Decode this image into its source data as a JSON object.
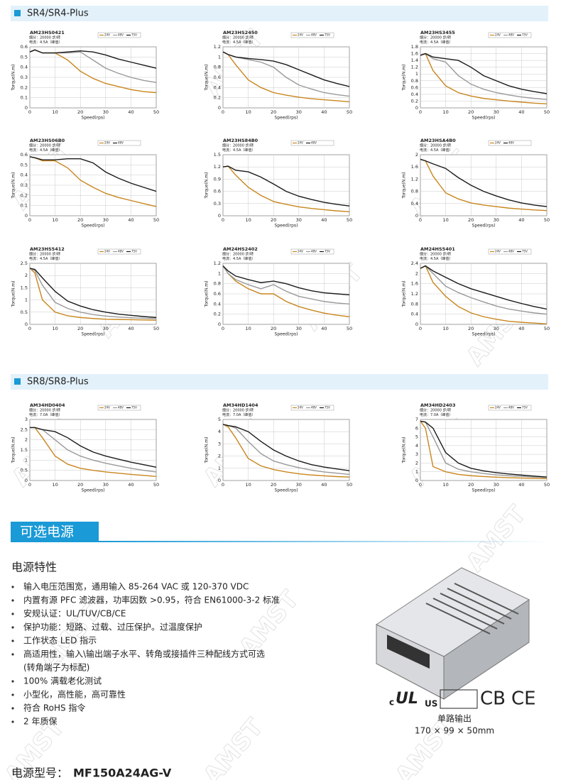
{
  "watermark": "AMST",
  "sections": [
    "SR4/SR4-Plus",
    "SR8/SR8-Plus"
  ],
  "power": {
    "banner": "可选电源",
    "heading": "电源特性",
    "bullets": [
      [
        "输入电压范围宽，通用输入 85-264 VAC 或 120-370 VDC"
      ],
      [
        "内置有源 PFC 滤波器，功率因数 >0.95，符合 EN61000-3-2 标准"
      ],
      [
        "安规认证：UL/TUV/CB/CE"
      ],
      [
        "保护功能：短路、过载、过压保护。过温度保护"
      ],
      [
        "工作状态 LED 指示"
      ],
      [
        "高适用性，输入\\输出端子水平、转角或接插件三种配线方式可选",
        "(转角端子为标配)"
      ],
      [
        "100% 满载老化测试"
      ],
      [
        "小型化，高性能，高可靠性"
      ],
      [
        "符合 RoHS 指令"
      ],
      [
        "2 年质保"
      ]
    ],
    "certs": {
      "c": "c",
      "ul": "UL",
      "us": "US",
      "cb": "CB",
      "ce": "CE"
    },
    "caption": "单路输出",
    "dims": "170 × 99 × 50mm",
    "model_label": "电源型号：",
    "model": "MF150A24AG-V"
  },
  "chart_data": [
    {
      "type": "line",
      "title": "AM23HS0421",
      "subtitle": [
        "细分：20000 步/转",
        "电流：4.5A（峰值）"
      ],
      "xlabel": "Speed(rps)",
      "ylabel": "Torque(N.m)",
      "x": [
        0,
        2,
        5,
        10,
        15,
        20,
        25,
        30,
        35,
        40,
        45,
        50
      ],
      "xlim": [
        0,
        50
      ],
      "xticks": [
        0,
        10,
        20,
        30,
        40,
        50
      ],
      "ylim": [
        0,
        0.6
      ],
      "yticks": [
        0,
        0.1,
        0.2,
        0.3,
        0.4,
        0.5,
        0.6
      ],
      "grid": true,
      "series": [
        {
          "name": "24V",
          "color": "#c8861e",
          "values": [
            0.55,
            0.57,
            0.54,
            0.54,
            0.47,
            0.36,
            0.29,
            0.24,
            0.21,
            0.18,
            0.16,
            0.15
          ]
        },
        {
          "name": "48V",
          "color": "#999999",
          "values": [
            0.55,
            0.57,
            0.54,
            0.54,
            0.54,
            0.55,
            0.47,
            0.39,
            0.34,
            0.3,
            0.27,
            0.25
          ]
        },
        {
          "name": "75V",
          "color": "#1a1a1a",
          "values": [
            0.55,
            0.57,
            0.54,
            0.54,
            0.55,
            0.56,
            0.55,
            0.52,
            0.48,
            0.45,
            0.42,
            0.39
          ]
        }
      ]
    },
    {
      "type": "line",
      "title": "AM23HS2450",
      "subtitle": [
        "细分：20000 步/转",
        "电流：4.5A（峰值）"
      ],
      "xlabel": "Speed(rps)",
      "ylabel": "Torque(N.m)",
      "x": [
        0,
        2,
        5,
        10,
        15,
        20,
        25,
        30,
        35,
        40,
        45,
        50
      ],
      "xlim": [
        0,
        50
      ],
      "xticks": [
        0,
        10,
        20,
        30,
        40,
        50
      ],
      "ylim": [
        0,
        1.2
      ],
      "yticks": [
        0,
        0.2,
        0.4,
        0.6,
        0.8,
        1,
        1.2
      ],
      "grid": true,
      "series": [
        {
          "name": "24V",
          "color": "#c8861e",
          "values": [
            1.1,
            1.05,
            0.85,
            0.55,
            0.4,
            0.3,
            0.25,
            0.21,
            0.18,
            0.16,
            0.14,
            0.12
          ]
        },
        {
          "name": "48V",
          "color": "#999999",
          "values": [
            1.1,
            1.05,
            1,
            0.95,
            0.9,
            0.8,
            0.6,
            0.45,
            0.37,
            0.3,
            0.26,
            0.23
          ]
        },
        {
          "name": "75V",
          "color": "#1a1a1a",
          "values": [
            1.1,
            1.05,
            1,
            0.97,
            0.95,
            0.92,
            0.85,
            0.75,
            0.65,
            0.55,
            0.48,
            0.42
          ]
        }
      ]
    },
    {
      "type": "line",
      "title": "AM23HS3455",
      "subtitle": [
        "细分：20000 步/转",
        "电流：4.5A（峰值）"
      ],
      "xlabel": "Speed(rps)",
      "ylabel": "Torque(N.m)",
      "x": [
        0,
        2,
        5,
        10,
        15,
        20,
        25,
        30,
        35,
        40,
        45,
        50
      ],
      "xlim": [
        0,
        50
      ],
      "xticks": [
        0,
        10,
        20,
        30,
        40,
        50
      ],
      "ylim": [
        0,
        1.8
      ],
      "yticks": [
        0,
        0.2,
        0.4,
        0.6,
        0.8,
        1,
        1.2,
        1.4,
        1.6,
        1.8
      ],
      "grid": true,
      "series": [
        {
          "name": "24V",
          "color": "#c8861e",
          "values": [
            1.55,
            1.6,
            1.1,
            0.65,
            0.45,
            0.35,
            0.28,
            0.24,
            0.2,
            0.17,
            0.14,
            0.12
          ]
        },
        {
          "name": "48V",
          "color": "#999999",
          "values": [
            1.55,
            1.6,
            1.45,
            1.35,
            0.95,
            0.7,
            0.55,
            0.45,
            0.38,
            0.32,
            0.28,
            0.25
          ]
        },
        {
          "name": "75V",
          "color": "#1a1a1a",
          "values": [
            1.55,
            1.6,
            1.5,
            1.45,
            1.4,
            1.2,
            0.95,
            0.8,
            0.65,
            0.55,
            0.48,
            0.42
          ]
        }
      ]
    },
    {
      "type": "line",
      "title": "AM23HS06B0",
      "subtitle": [
        "细分：20000 步/转",
        "电流：4.5A（峰值）"
      ],
      "xlabel": "Speed(rps)",
      "ylabel": "Torque(N.m)",
      "x": [
        0,
        2,
        5,
        10,
        15,
        20,
        25,
        30,
        35,
        40,
        45,
        50
      ],
      "xlim": [
        0,
        50
      ],
      "xticks": [
        0,
        10,
        20,
        30,
        40,
        50
      ],
      "ylim": [
        0,
        0.6
      ],
      "yticks": [
        0,
        0.1,
        0.2,
        0.3,
        0.4,
        0.5,
        0.6
      ],
      "grid": true,
      "series": [
        {
          "name": "24V",
          "color": "#c8861e",
          "values": [
            0.58,
            0.57,
            0.54,
            0.54,
            0.47,
            0.35,
            0.28,
            0.22,
            0.18,
            0.15,
            0.12,
            0.09
          ]
        },
        {
          "name": "48V",
          "color": "#1a1a1a",
          "values": [
            0.58,
            0.57,
            0.55,
            0.55,
            0.56,
            0.56,
            0.52,
            0.43,
            0.37,
            0.32,
            0.28,
            0.24
          ]
        }
      ]
    },
    {
      "type": "line",
      "title": "AM23HS84B0",
      "subtitle": [
        "细分：20000 步/转",
        "电流：4.5A（峰值）"
      ],
      "xlabel": "Speed(rps)",
      "ylabel": "Torque(N.m)",
      "x": [
        0,
        2,
        5,
        10,
        15,
        20,
        25,
        30,
        35,
        40,
        45,
        50
      ],
      "xlim": [
        0,
        50
      ],
      "xticks": [
        0,
        10,
        20,
        30,
        40,
        50
      ],
      "ylim": [
        0,
        1.5
      ],
      "yticks": [
        0,
        0.3,
        0.6,
        0.9,
        1.2,
        1.5
      ],
      "grid": true,
      "series": [
        {
          "name": "24V",
          "color": "#c8861e",
          "values": [
            1.2,
            1.22,
            1,
            0.7,
            0.5,
            0.35,
            0.28,
            0.22,
            0.18,
            0.15,
            0.12,
            0.1
          ]
        },
        {
          "name": "48V",
          "color": "#1a1a1a",
          "values": [
            1.2,
            1.22,
            1.12,
            1.08,
            0.95,
            0.78,
            0.6,
            0.48,
            0.4,
            0.33,
            0.28,
            0.24
          ]
        }
      ]
    },
    {
      "type": "line",
      "title": "AM23HSA4B0",
      "subtitle": [
        "细分：20000 步/转",
        "电流：4.5A（峰值）"
      ],
      "xlabel": "Speed(rps)",
      "ylabel": "Torque(N.m)",
      "x": [
        0,
        2,
        5,
        10,
        15,
        20,
        25,
        30,
        35,
        40,
        45,
        50
      ],
      "xlim": [
        0,
        50
      ],
      "xticks": [
        0,
        10,
        20,
        30,
        40,
        50
      ],
      "ylim": [
        0,
        2
      ],
      "yticks": [
        0,
        0.4,
        0.8,
        1.2,
        1.6,
        2
      ],
      "grid": true,
      "series": [
        {
          "name": "24V",
          "color": "#c8861e",
          "values": [
            1.85,
            1.8,
            1.3,
            0.75,
            0.55,
            0.42,
            0.35,
            0.3,
            0.25,
            0.22,
            0.19,
            0.17
          ]
        },
        {
          "name": "48V",
          "color": "#1a1a1a",
          "values": [
            1.85,
            1.8,
            1.7,
            1.55,
            1.25,
            1,
            0.8,
            0.65,
            0.52,
            0.42,
            0.35,
            0.3
          ]
        }
      ]
    },
    {
      "type": "line",
      "title": "AM23HS5412",
      "subtitle": [
        "细分：20000 步/转",
        "电流：4.5A（峰值）"
      ],
      "xlabel": "Speed(rps)",
      "ylabel": "Torque(N.m)",
      "x": [
        0,
        2,
        5,
        10,
        15,
        20,
        25,
        30,
        35,
        40,
        45,
        50
      ],
      "xlim": [
        0,
        50
      ],
      "xticks": [
        0,
        10,
        20,
        30,
        40,
        50
      ],
      "ylim": [
        0,
        2.5
      ],
      "yticks": [
        0,
        0.5,
        1,
        1.5,
        2,
        2.5
      ],
      "grid": true,
      "series": [
        {
          "name": "24V",
          "color": "#c8861e",
          "values": [
            2.3,
            2.1,
            1,
            0.5,
            0.35,
            0.28,
            0.24,
            0.21,
            0.2,
            0.19,
            0.18,
            0.17
          ]
        },
        {
          "name": "48V",
          "color": "#999999",
          "values": [
            2.3,
            2.2,
            1.6,
            0.9,
            0.65,
            0.5,
            0.4,
            0.34,
            0.3,
            0.27,
            0.25,
            0.23
          ]
        },
        {
          "name": "75V",
          "color": "#1a1a1a",
          "values": [
            2.3,
            2.25,
            1.9,
            1.35,
            0.95,
            0.75,
            0.6,
            0.5,
            0.42,
            0.37,
            0.32,
            0.28
          ]
        }
      ]
    },
    {
      "type": "line",
      "title": "AM24HS2402",
      "subtitle": [
        "细分：20000 步/转",
        "电流：4.5A（峰值）"
      ],
      "xlabel": "Speed(rps)",
      "ylabel": "Torque(N.m)",
      "x": [
        0,
        2,
        5,
        10,
        15,
        20,
        25,
        30,
        35,
        40,
        45,
        50
      ],
      "xlim": [
        0,
        50
      ],
      "xticks": [
        0,
        10,
        20,
        30,
        40,
        50
      ],
      "ylim": [
        0,
        1.2
      ],
      "yticks": [
        0,
        0.2,
        0.4,
        0.6,
        0.8,
        1,
        1.2
      ],
      "grid": true,
      "series": [
        {
          "name": "24V",
          "color": "#c8861e",
          "values": [
            1.15,
            1,
            0.85,
            0.7,
            0.6,
            0.6,
            0.45,
            0.35,
            0.28,
            0.22,
            0.18,
            0.15
          ]
        },
        {
          "name": "48V",
          "color": "#999999",
          "values": [
            1.15,
            1,
            0.88,
            0.78,
            0.7,
            0.78,
            0.65,
            0.55,
            0.5,
            0.45,
            0.42,
            0.4
          ]
        },
        {
          "name": "75V",
          "color": "#1a1a1a",
          "values": [
            1.15,
            1.05,
            0.95,
            0.88,
            0.82,
            0.85,
            0.8,
            0.72,
            0.66,
            0.62,
            0.6,
            0.58
          ]
        }
      ]
    },
    {
      "type": "line",
      "title": "AM24HS5401",
      "subtitle": [
        "细分：20000 步/转",
        "电流：4.5A（峰值）"
      ],
      "xlabel": "Speed(rps)",
      "ylabel": "Torque(N.m)",
      "x": [
        0,
        2,
        5,
        10,
        15,
        20,
        25,
        30,
        35,
        40,
        45,
        50
      ],
      "xlim": [
        0,
        50
      ],
      "xticks": [
        0,
        10,
        20,
        30,
        40,
        50
      ],
      "ylim": [
        0,
        2.4
      ],
      "yticks": [
        0,
        0.4,
        0.8,
        1.2,
        1.6,
        2,
        2.4
      ],
      "grid": true,
      "series": [
        {
          "name": "24V",
          "color": "#c8861e",
          "values": [
            2.2,
            2.3,
            1.65,
            1.1,
            0.7,
            0.45,
            0.3,
            0.2,
            0.12,
            0.08,
            0.05,
            0.02
          ]
        },
        {
          "name": "48V",
          "color": "#999999",
          "values": [
            2.2,
            2.3,
            2,
            1.5,
            1.25,
            1.05,
            0.88,
            0.72,
            0.6,
            0.52,
            0.45,
            0.4
          ]
        },
        {
          "name": "75V",
          "color": "#1a1a1a",
          "values": [
            2.2,
            2.3,
            2.1,
            1.85,
            1.6,
            1.4,
            1.25,
            1.1,
            0.95,
            0.82,
            0.7,
            0.6
          ]
        }
      ]
    },
    {
      "type": "line",
      "title": "AM34HD0404",
      "subtitle": [
        "细分：20000 步/转",
        "电流：7.0A（峰值）"
      ],
      "xlabel": "Speed(rps)",
      "ylabel": "Torque(N.m)",
      "x": [
        0,
        2,
        5,
        10,
        15,
        20,
        25,
        30,
        35,
        40,
        45,
        50
      ],
      "xlim": [
        0,
        50
      ],
      "xticks": [
        0,
        10,
        20,
        30,
        40,
        50
      ],
      "ylim": [
        0,
        3
      ],
      "yticks": [
        0,
        0.5,
        1,
        1.5,
        2,
        2.5,
        3
      ],
      "grid": true,
      "series": [
        {
          "name": "24V",
          "color": "#c8861e",
          "values": [
            2.6,
            2.6,
            2.1,
            1.2,
            0.8,
            0.6,
            0.5,
            0.42,
            0.36,
            0.3,
            0.25,
            0.2
          ]
        },
        {
          "name": "48V",
          "color": "#999999",
          "values": [
            2.6,
            2.6,
            2.5,
            2,
            1.5,
            1.2,
            1,
            0.85,
            0.72,
            0.6,
            0.5,
            0.42
          ]
        },
        {
          "name": "75V",
          "color": "#1a1a1a",
          "values": [
            2.6,
            2.6,
            2.5,
            2.4,
            2.1,
            1.7,
            1.4,
            1.2,
            1.05,
            0.9,
            0.78,
            0.65
          ]
        }
      ]
    },
    {
      "type": "line",
      "title": "AM34HD1404",
      "subtitle": [
        "细分：20000 步/转",
        "电流：7.0A（峰值）"
      ],
      "xlabel": "Speed(rps)",
      "ylabel": "Torque(N.m)",
      "x": [
        0,
        2,
        5,
        10,
        15,
        20,
        25,
        30,
        35,
        40,
        45,
        50
      ],
      "xlim": [
        0,
        50
      ],
      "xticks": [
        0,
        10,
        20,
        30,
        40,
        50
      ],
      "ylim": [
        0,
        5
      ],
      "yticks": [
        0,
        1,
        2,
        3,
        4,
        5
      ],
      "grid": true,
      "series": [
        {
          "name": "24V",
          "color": "#c8861e",
          "values": [
            4.6,
            4.4,
            3.5,
            1.8,
            1.2,
            0.9,
            0.7,
            0.55,
            0.45,
            0.38,
            0.32,
            0.28
          ]
        },
        {
          "name": "48V",
          "color": "#999999",
          "values": [
            4.6,
            4.5,
            4.3,
            3.2,
            2.2,
            1.6,
            1.3,
            1.05,
            0.85,
            0.7,
            0.6,
            0.5
          ]
        },
        {
          "name": "75V",
          "color": "#1a1a1a",
          "values": [
            4.6,
            4.5,
            4.4,
            4,
            3.2,
            2.5,
            2,
            1.6,
            1.3,
            1.1,
            0.95,
            0.8
          ]
        }
      ]
    },
    {
      "type": "line",
      "title": "AM34HD2403",
      "subtitle": [
        "细分：20000 步/转",
        "电流：7.0A（峰值）"
      ],
      "xlabel": "Speed(rps)",
      "ylabel": "Torque(N.m)",
      "x": [
        0,
        2,
        5,
        10,
        15,
        20,
        25,
        30,
        35,
        40,
        45,
        50
      ],
      "xlim": [
        0,
        50
      ],
      "xticks": [
        0,
        10,
        20,
        30,
        40,
        50
      ],
      "ylim": [
        0,
        7
      ],
      "yticks": [
        0,
        1,
        2,
        3,
        4,
        5,
        6,
        7
      ],
      "grid": true,
      "series": [
        {
          "name": "24V",
          "color": "#c8861e",
          "values": [
            6.8,
            6,
            1.6,
            1,
            0.7,
            0.55,
            0.45,
            0.38,
            0.32,
            0.28,
            0.25,
            0.22
          ]
        },
        {
          "name": "48V",
          "color": "#999999",
          "values": [
            6.8,
            6.7,
            5,
            2,
            1.3,
            1,
            0.8,
            0.65,
            0.55,
            0.47,
            0.4,
            0.35
          ]
        },
        {
          "name": "75V",
          "color": "#1a1a1a",
          "values": [
            6.8,
            6.7,
            6,
            3.2,
            2,
            1.4,
            1.1,
            0.9,
            0.75,
            0.62,
            0.5,
            0.4
          ]
        }
      ]
    }
  ]
}
